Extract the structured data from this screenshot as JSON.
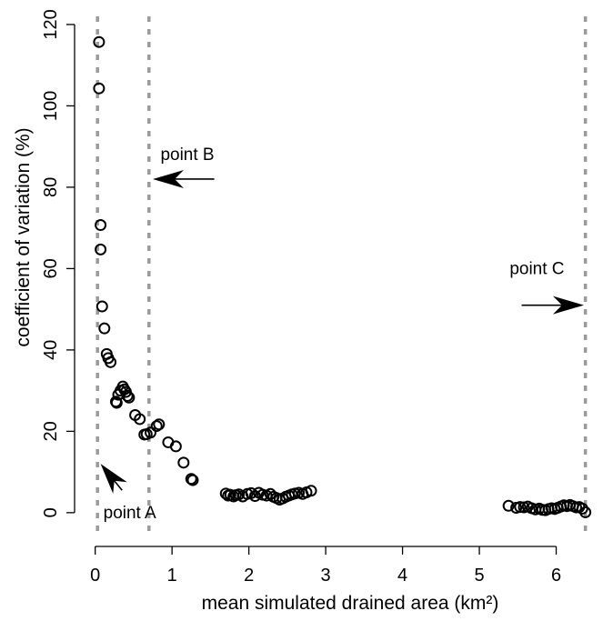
{
  "chart_data": {
    "type": "scatter",
    "xlabel": "mean simulated drained area (km²)",
    "ylabel": "coefficient of variation (%)",
    "xlim": [
      -0.15,
      6.55
    ],
    "ylim": [
      -4.5,
      122
    ],
    "x_ticks": [
      0,
      1,
      2,
      3,
      4,
      5,
      6
    ],
    "y_ticks": [
      0,
      20,
      40,
      60,
      80,
      100,
      120
    ],
    "grid": false,
    "vertical_lines": [
      {
        "x": 0.03,
        "color": "#9a9a9a",
        "style": "dashed"
      },
      {
        "x": 0.7,
        "color": "#9a9a9a",
        "style": "dashed"
      },
      {
        "x": 6.38,
        "color": "#9a9a9a",
        "style": "dashed"
      }
    ],
    "annotations": [
      {
        "text": "point A",
        "text_x": 0.45,
        "text_y": 0,
        "arrow_from": [
          0.35,
          5.5
        ],
        "arrow_to": [
          0.07,
          12
        ]
      },
      {
        "text": "point B",
        "text_x": 1.2,
        "text_y": 88,
        "arrow_from": [
          1.55,
          82
        ],
        "arrow_to": [
          0.75,
          82
        ]
      },
      {
        "text": "point C",
        "text_x": 5.75,
        "text_y": 60,
        "arrow_from": [
          5.55,
          51
        ],
        "arrow_to": [
          6.36,
          51
        ]
      }
    ],
    "series": [
      {
        "marker": "open-circle",
        "color": "#000000",
        "points": [
          [
            0.05,
            115.7
          ],
          [
            0.05,
            104.3
          ],
          [
            0.07,
            70.7
          ],
          [
            0.07,
            64.7
          ],
          [
            0.09,
            50.7
          ],
          [
            0.12,
            45.3
          ],
          [
            0.15,
            39.0
          ],
          [
            0.17,
            38.0
          ],
          [
            0.2,
            37.0
          ],
          [
            0.27,
            27.3
          ],
          [
            0.28,
            27.0
          ],
          [
            0.3,
            29.0
          ],
          [
            0.33,
            30.0
          ],
          [
            0.36,
            31.0
          ],
          [
            0.38,
            30.3
          ],
          [
            0.4,
            29.7
          ],
          [
            0.42,
            28.7
          ],
          [
            0.44,
            28.3
          ],
          [
            0.52,
            24.0
          ],
          [
            0.58,
            23.0
          ],
          [
            0.64,
            19.2
          ],
          [
            0.67,
            19.3
          ],
          [
            0.72,
            19.7
          ],
          [
            0.8,
            21.3
          ],
          [
            0.83,
            21.7
          ],
          [
            0.95,
            17.3
          ],
          [
            1.05,
            16.3
          ],
          [
            1.15,
            12.3
          ],
          [
            1.25,
            8.3
          ],
          [
            1.27,
            8.0
          ],
          [
            1.7,
            4.7
          ],
          [
            1.73,
            4.2
          ],
          [
            1.76,
            4.4
          ],
          [
            1.8,
            4.0
          ],
          [
            1.83,
            4.3
          ],
          [
            1.87,
            4.5
          ],
          [
            1.92,
            4.0
          ],
          [
            1.98,
            4.6
          ],
          [
            2.03,
            4.8
          ],
          [
            2.08,
            4.1
          ],
          [
            2.13,
            4.9
          ],
          [
            2.18,
            4.4
          ],
          [
            2.23,
            4.2
          ],
          [
            2.28,
            4.6
          ],
          [
            2.32,
            3.9
          ],
          [
            2.36,
            3.6
          ],
          [
            2.4,
            3.2
          ],
          [
            2.44,
            3.5
          ],
          [
            2.48,
            3.9
          ],
          [
            2.52,
            4.2
          ],
          [
            2.56,
            4.5
          ],
          [
            2.6,
            4.7
          ],
          [
            2.65,
            4.9
          ],
          [
            2.7,
            4.6
          ],
          [
            2.75,
            5.0
          ],
          [
            2.81,
            5.4
          ],
          [
            5.38,
            1.7
          ],
          [
            5.48,
            1.2
          ],
          [
            5.53,
            1.4
          ],
          [
            5.58,
            1.3
          ],
          [
            5.63,
            1.5
          ],
          [
            5.68,
            1.1
          ],
          [
            5.73,
            0.8
          ],
          [
            5.78,
            1.0
          ],
          [
            5.82,
            0.7
          ],
          [
            5.86,
            0.6
          ],
          [
            5.9,
            0.9
          ],
          [
            5.94,
            1.1
          ],
          [
            5.98,
            0.9
          ],
          [
            6.02,
            1.2
          ],
          [
            6.06,
            1.5
          ],
          [
            6.1,
            1.8
          ],
          [
            6.14,
            1.6
          ],
          [
            6.18,
            1.9
          ],
          [
            6.22,
            1.6
          ],
          [
            6.26,
            1.3
          ],
          [
            6.3,
            1.4
          ],
          [
            6.34,
            1.0
          ],
          [
            6.38,
            0.1
          ]
        ]
      }
    ]
  }
}
